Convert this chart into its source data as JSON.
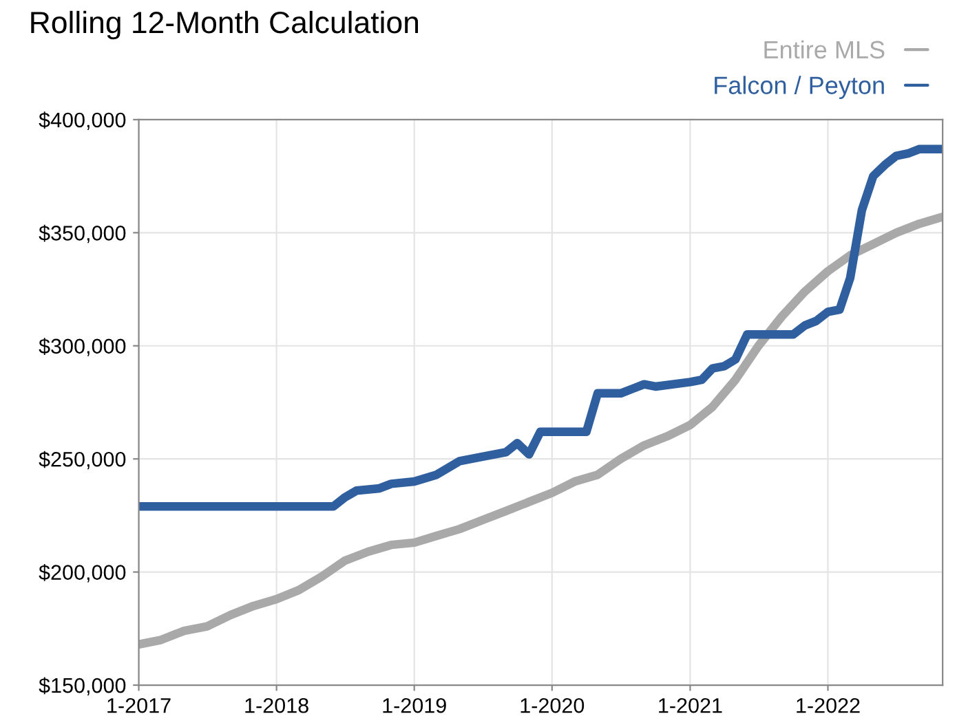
{
  "chart_data": {
    "type": "line",
    "title": "Rolling 12-Month Calculation",
    "series": [
      {
        "name": "Entire MLS",
        "color": "#a9a9a9",
        "x": [
          "2017-01",
          "2017-03",
          "2017-05",
          "2017-07",
          "2017-09",
          "2017-11",
          "2018-01",
          "2018-03",
          "2018-05",
          "2018-07",
          "2018-09",
          "2018-11",
          "2019-01",
          "2019-03",
          "2019-05",
          "2019-07",
          "2019-09",
          "2019-11",
          "2020-01",
          "2020-03",
          "2020-05",
          "2020-07",
          "2020-09",
          "2020-11",
          "2021-01",
          "2021-03",
          "2021-05",
          "2021-07",
          "2021-09",
          "2021-11",
          "2022-01",
          "2022-03",
          "2022-05",
          "2022-07",
          "2022-09",
          "2022-11"
        ],
        "values": [
          168000,
          170000,
          174000,
          176000,
          181000,
          185000,
          188000,
          192000,
          198000,
          205000,
          209000,
          212000,
          213000,
          216000,
          219000,
          223000,
          227000,
          231000,
          235000,
          240000,
          243000,
          250000,
          256000,
          260000,
          265000,
          273000,
          285000,
          300000,
          313000,
          324000,
          333000,
          340000,
          345000,
          350000,
          354000,
          357000
        ]
      },
      {
        "name": "Falcon / Peyton",
        "color": "#2f5f9e",
        "x": [
          "2017-01",
          "2018-06",
          "2018-07",
          "2018-08",
          "2018-10",
          "2018-11",
          "2019-01",
          "2019-03",
          "2019-05",
          "2019-07",
          "2019-09",
          "2019-10",
          "2019-11",
          "2019-12",
          "2020-04",
          "2020-05",
          "2020-07",
          "2020-08",
          "2020-09",
          "2020-10",
          "2021-01",
          "2021-02",
          "2021-03",
          "2021-04",
          "2021-05",
          "2021-06",
          "2021-10",
          "2021-11",
          "2021-12",
          "2022-01",
          "2022-02",
          "2022-03",
          "2022-04",
          "2022-05",
          "2022-06",
          "2022-07",
          "2022-08",
          "2022-09",
          "2022-11"
        ],
        "values": [
          229000,
          229000,
          233000,
          236000,
          237000,
          239000,
          240000,
          243000,
          249000,
          251000,
          253000,
          257000,
          252000,
          262000,
          262000,
          279000,
          279000,
          281000,
          283000,
          282000,
          284000,
          285000,
          290000,
          291000,
          294000,
          305000,
          305000,
          309000,
          311000,
          315000,
          316000,
          330000,
          360000,
          375000,
          380000,
          384000,
          385000,
          387000,
          387000
        ]
      }
    ],
    "xlim": [
      "2017-01",
      "2022-11"
    ],
    "xticks": [
      {
        "value": "2017-01",
        "label": "1-2017"
      },
      {
        "value": "2018-01",
        "label": "1-2018"
      },
      {
        "value": "2019-01",
        "label": "1-2019"
      },
      {
        "value": "2020-01",
        "label": "1-2020"
      },
      {
        "value": "2021-01",
        "label": "1-2021"
      },
      {
        "value": "2022-01",
        "label": "1-2022"
      }
    ],
    "ylim": [
      150000,
      400000
    ],
    "yticks": [
      {
        "value": 150000,
        "label": "$150,000"
      },
      {
        "value": 200000,
        "label": "$200,000"
      },
      {
        "value": 250000,
        "label": "$250,000"
      },
      {
        "value": 300000,
        "label": "$300,000"
      },
      {
        "value": 350000,
        "label": "$350,000"
      },
      {
        "value": 400000,
        "label": "$400,000"
      }
    ],
    "grid": true,
    "legend": "top right",
    "marker": "none",
    "line_style": "solid"
  }
}
